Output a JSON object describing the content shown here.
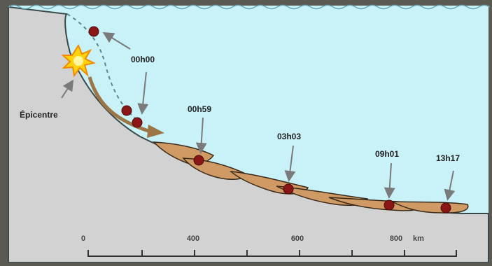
{
  "epicentre_label": "Épicentre",
  "time_labels": [
    "00h00",
    "00h59",
    "03h03",
    "09h01",
    "13h17"
  ],
  "scale": {
    "tick_labels": [
      "0",
      "400",
      "600",
      "800"
    ],
    "unit": "km"
  },
  "colors": {
    "frame": "#5a5a52",
    "water": "#c9f1f8",
    "seafloor": "#d2d2d2",
    "sediment": "#d09a64",
    "marker": "#8b1616",
    "arrow": "#7a7a7a",
    "flow_arrow": "#9d7647"
  }
}
